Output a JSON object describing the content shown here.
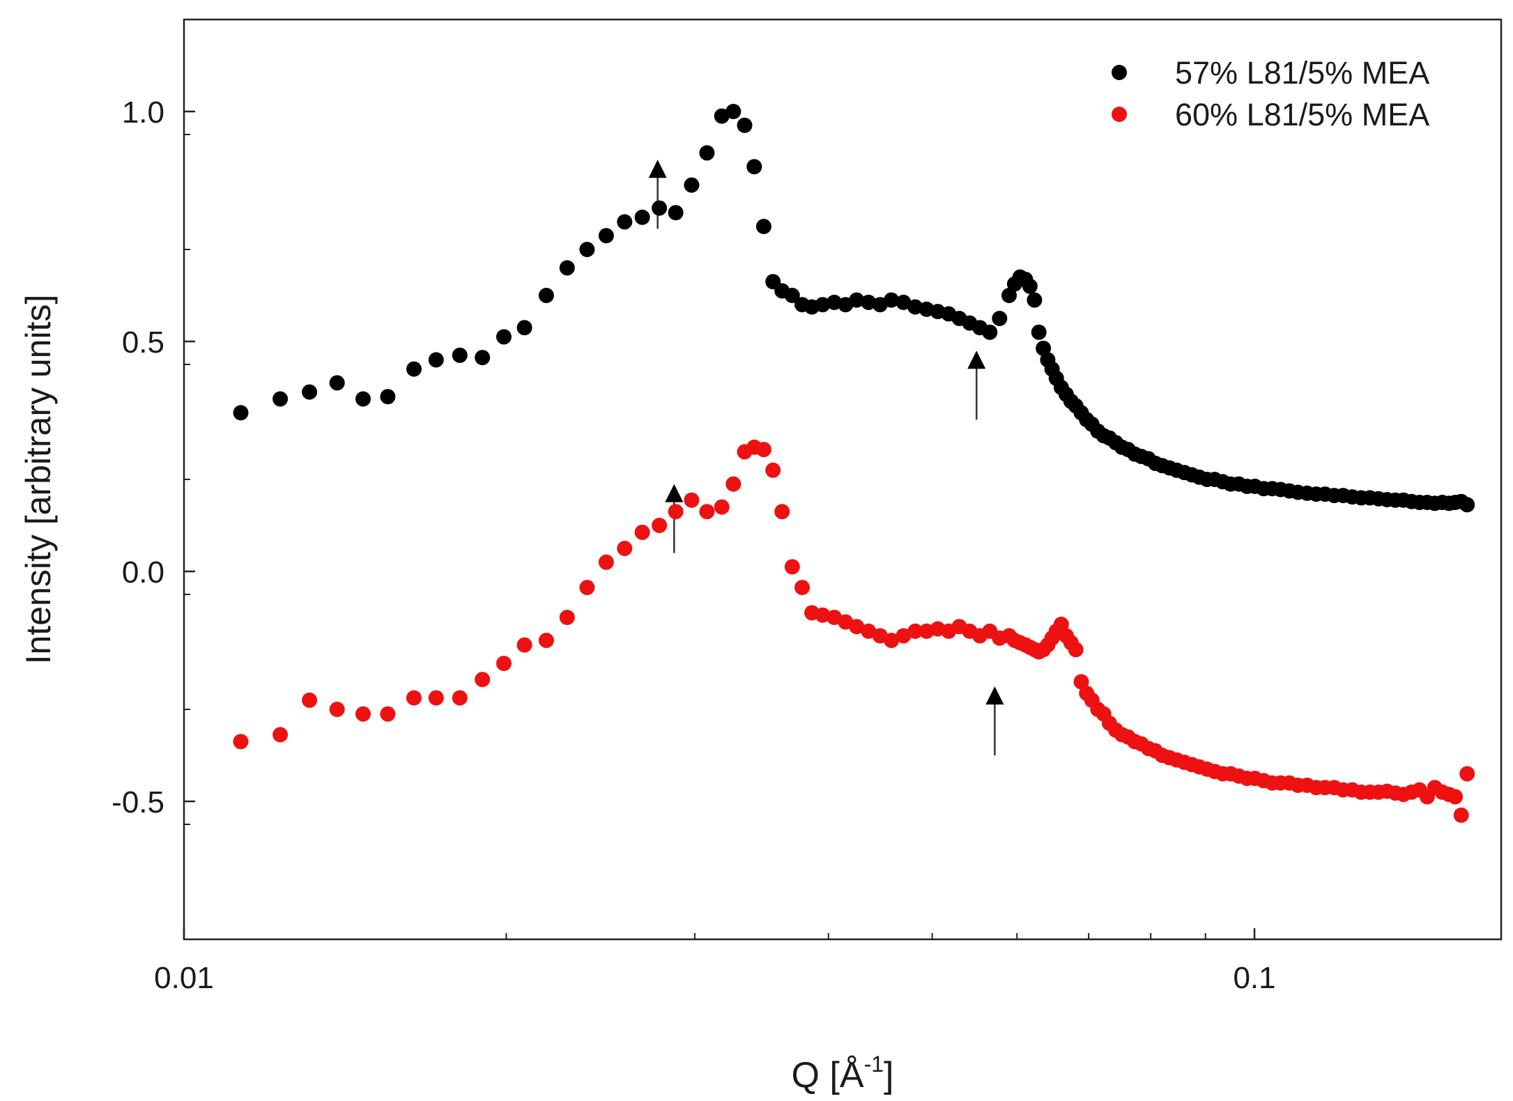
{
  "chart_data": {
    "type": "scatter",
    "title": "",
    "xlabel": "Q [Å",
    "xlabel_sup": "-1",
    "xlabel_close": "]",
    "ylabel": "Intensity [arbitrary units]",
    "xscale": "log",
    "xlim": [
      0.01,
      0.17
    ],
    "ylim": [
      -0.8,
      1.2
    ],
    "x_ticks": [
      {
        "value": 0.01,
        "label": "0.01"
      },
      {
        "value": 0.1,
        "label": "0.1"
      }
    ],
    "y_ticks": [
      {
        "value": 1.0,
        "label": "1.0"
      },
      {
        "value": 0.5,
        "label": "0.5"
      },
      {
        "value": 0.0,
        "label": "0.0"
      },
      {
        "value": -0.5,
        "label": "-0.5"
      }
    ],
    "legend_position": "top-right",
    "series": [
      {
        "name": "57% L81/5% MEA",
        "color": "#000000",
        "x": [
          0.0113,
          0.0123,
          0.0131,
          0.0139,
          0.0147,
          0.0155,
          0.0164,
          0.0172,
          0.0181,
          0.019,
          0.0199,
          0.0208,
          0.0218,
          0.0228,
          0.0238,
          0.0248,
          0.0258,
          0.0268,
          0.0278,
          0.0288,
          0.0298,
          0.0308,
          0.0318,
          0.0326,
          0.0334,
          0.0341,
          0.0348,
          0.0355,
          0.0362,
          0.037,
          0.0378,
          0.0386,
          0.0395,
          0.0405,
          0.0415,
          0.0425,
          0.0436,
          0.0447,
          0.0458,
          0.047,
          0.0482,
          0.0494,
          0.0506,
          0.0518,
          0.053,
          0.0542,
          0.0554,
          0.0566,
          0.0578,
          0.059,
          0.0597,
          0.0604,
          0.0611,
          0.0617,
          0.0623,
          0.0629,
          0.0635,
          0.0641,
          0.0647,
          0.0653,
          0.066,
          0.0667,
          0.0674,
          0.0681,
          0.0689,
          0.0697,
          0.0705,
          0.0714,
          0.0723,
          0.0732,
          0.0742,
          0.0752,
          0.0762,
          0.0773,
          0.0784,
          0.0796,
          0.0808,
          0.082,
          0.0833,
          0.0846,
          0.086,
          0.0874,
          0.0888,
          0.0903,
          0.0918,
          0.0934,
          0.095,
          0.0967,
          0.0984,
          0.1001,
          0.102,
          0.1039,
          0.1058,
          0.1078,
          0.1098,
          0.112,
          0.1142,
          0.1164,
          0.1187,
          0.121,
          0.1234,
          0.1258,
          0.1282,
          0.1306,
          0.133,
          0.1354,
          0.1378,
          0.1402,
          0.1426,
          0.145,
          0.1474,
          0.1498,
          0.152,
          0.154,
          0.156,
          0.158
        ],
        "y": [
          0.345,
          0.375,
          0.39,
          0.41,
          0.375,
          0.38,
          0.44,
          0.46,
          0.47,
          0.465,
          0.51,
          0.53,
          0.6,
          0.66,
          0.7,
          0.73,
          0.76,
          0.77,
          0.79,
          0.78,
          0.84,
          0.91,
          0.99,
          1.0,
          0.97,
          0.88,
          0.75,
          0.63,
          0.61,
          0.6,
          0.58,
          0.575,
          0.58,
          0.585,
          0.58,
          0.59,
          0.585,
          0.58,
          0.59,
          0.585,
          0.575,
          0.57,
          0.565,
          0.56,
          0.55,
          0.54,
          0.53,
          0.52,
          0.55,
          0.6,
          0.625,
          0.64,
          0.635,
          0.62,
          0.59,
          0.52,
          0.485,
          0.46,
          0.44,
          0.42,
          0.4,
          0.385,
          0.37,
          0.36,
          0.345,
          0.33,
          0.32,
          0.305,
          0.295,
          0.29,
          0.28,
          0.27,
          0.265,
          0.255,
          0.25,
          0.245,
          0.235,
          0.23,
          0.225,
          0.22,
          0.215,
          0.21,
          0.205,
          0.2,
          0.2,
          0.195,
          0.19,
          0.19,
          0.185,
          0.185,
          0.18,
          0.18,
          0.178,
          0.175,
          0.172,
          0.17,
          0.168,
          0.168,
          0.165,
          0.165,
          0.162,
          0.16,
          0.16,
          0.158,
          0.156,
          0.155,
          0.155,
          0.152,
          0.15,
          0.15,
          0.148,
          0.15,
          0.148,
          0.15,
          0.152,
          0.145
        ]
      },
      {
        "name": "60% L81/5% MEA",
        "color": "#ee1111",
        "x": [
          0.0113,
          0.0123,
          0.0131,
          0.0139,
          0.0147,
          0.0155,
          0.0164,
          0.0172,
          0.0181,
          0.019,
          0.0199,
          0.0208,
          0.0218,
          0.0228,
          0.0238,
          0.0248,
          0.0258,
          0.0268,
          0.0278,
          0.0288,
          0.0298,
          0.0308,
          0.0318,
          0.0326,
          0.0334,
          0.0341,
          0.0348,
          0.0355,
          0.0362,
          0.037,
          0.0378,
          0.0386,
          0.0395,
          0.0405,
          0.0415,
          0.0425,
          0.0436,
          0.0447,
          0.0458,
          0.047,
          0.0482,
          0.0494,
          0.0506,
          0.0518,
          0.053,
          0.0542,
          0.0554,
          0.0566,
          0.0578,
          0.059,
          0.0597,
          0.0604,
          0.0611,
          0.0617,
          0.0623,
          0.0629,
          0.0635,
          0.0641,
          0.0647,
          0.0653,
          0.066,
          0.0667,
          0.0674,
          0.0681,
          0.0689,
          0.0697,
          0.0705,
          0.0714,
          0.0723,
          0.0732,
          0.0742,
          0.0752,
          0.0762,
          0.0773,
          0.0784,
          0.0796,
          0.0808,
          0.082,
          0.0833,
          0.0846,
          0.086,
          0.0874,
          0.0888,
          0.0903,
          0.0918,
          0.0934,
          0.095,
          0.0967,
          0.0984,
          0.1001,
          0.102,
          0.1039,
          0.1058,
          0.1078,
          0.1098,
          0.112,
          0.1142,
          0.1164,
          0.1187,
          0.121,
          0.1234,
          0.1258,
          0.1282,
          0.1306,
          0.133,
          0.1354,
          0.1378,
          0.1402,
          0.1426,
          0.145,
          0.1474,
          0.1498,
          0.152,
          0.154,
          0.156,
          0.158
        ],
        "y": [
          -0.37,
          -0.355,
          -0.28,
          -0.3,
          -0.31,
          -0.31,
          -0.275,
          -0.275,
          -0.275,
          -0.235,
          -0.2,
          -0.16,
          -0.15,
          -0.1,
          -0.035,
          0.02,
          0.05,
          0.085,
          0.1,
          0.13,
          0.155,
          0.13,
          0.14,
          0.19,
          0.26,
          0.27,
          0.265,
          0.22,
          0.13,
          0.01,
          -0.035,
          -0.09,
          -0.095,
          -0.1,
          -0.11,
          -0.12,
          -0.13,
          -0.14,
          -0.15,
          -0.14,
          -0.13,
          -0.13,
          -0.125,
          -0.13,
          -0.12,
          -0.13,
          -0.14,
          -0.13,
          -0.145,
          -0.14,
          -0.15,
          -0.155,
          -0.16,
          -0.165,
          -0.17,
          -0.175,
          -0.17,
          -0.16,
          -0.145,
          -0.13,
          -0.115,
          -0.14,
          -0.155,
          -0.17,
          -0.24,
          -0.265,
          -0.28,
          -0.3,
          -0.31,
          -0.33,
          -0.345,
          -0.355,
          -0.36,
          -0.37,
          -0.375,
          -0.385,
          -0.39,
          -0.4,
          -0.405,
          -0.41,
          -0.415,
          -0.42,
          -0.425,
          -0.43,
          -0.435,
          -0.44,
          -0.44,
          -0.445,
          -0.45,
          -0.45,
          -0.455,
          -0.46,
          -0.46,
          -0.46,
          -0.465,
          -0.465,
          -0.47,
          -0.47,
          -0.47,
          -0.475,
          -0.475,
          -0.48,
          -0.48,
          -0.48,
          -0.478,
          -0.482,
          -0.485,
          -0.48,
          -0.475,
          -0.49,
          -0.47,
          -0.48,
          -0.485,
          -0.49,
          -0.53,
          -0.44
        ]
      }
    ],
    "annotations": [
      {
        "type": "arrow",
        "series": "57% L81/5% MEA",
        "q": 0.0277,
        "y_from": 0.745,
        "y_to": 0.895
      },
      {
        "type": "arrow",
        "series": "57% L81/5% MEA",
        "q": 0.055,
        "y_from": 0.33,
        "y_to": 0.48
      },
      {
        "type": "arrow",
        "series": "60% L81/5% MEA",
        "q": 0.0287,
        "y_from": 0.04,
        "y_to": 0.19
      },
      {
        "type": "arrow",
        "series": "60% L81/5% MEA",
        "q": 0.0572,
        "y_from": -0.4,
        "y_to": -0.25
      }
    ]
  }
}
